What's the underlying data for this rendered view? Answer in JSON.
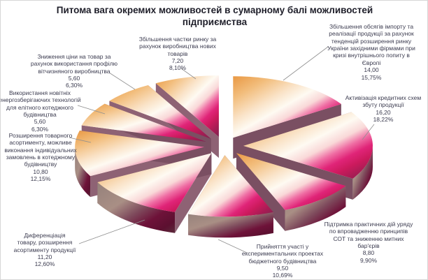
{
  "window": {
    "background": "#ffffff",
    "border_color": "#d6d6d6"
  },
  "title": {
    "text": "Питома вага окремих можливостей в сумарному балі можливостей\nпідприємства",
    "color": "#1e1e29"
  },
  "palette": {
    "slice_gradient": [
      "#E99843",
      "#F2BD7C",
      "#FAE3C8",
      "#FEFAF2",
      "#F9D8D8",
      "#EF6EA4",
      "#E02478",
      "#CC1A5D",
      "#A81C54",
      "#7E2450"
    ],
    "rim_gradient": [
      "#95817B",
      "#A98F85",
      "#7E4A5C",
      "#6E1239",
      "#5C1030",
      "#5C2B3C"
    ],
    "wall_start": "#8E6274",
    "wall_end": "#7A4F62",
    "leader_line": "#909090",
    "label_text": "#3c3c50"
  },
  "chart_data": {
    "type": "pie",
    "title": "Питома вага окремих можливостей в сумарному балі можливостей підприємства",
    "effect_3d": true,
    "exploded": true,
    "direction": "clockwise",
    "start_angle_deg": 0,
    "legend": "none",
    "data_label_format": "category, value, percent",
    "slices": [
      {
        "label": "Збільшення обсягів імпорту та\nреалізації продукції за рахунок\nтенденцій розширення ринку\nУкраїни західними фірмами при\nкризі внутрішнього попиту в\nЄвропі",
        "value": 14.0,
        "value_label": "14,00",
        "percent": 15.75,
        "percent_label": "15,75%"
      },
      {
        "label": "Активізація кредитних схем\nзбуту продукції",
        "value": 16.2,
        "value_label": "16,20",
        "percent": 18.22,
        "percent_label": "18,22%"
      },
      {
        "label": "Підтримка практичних дій уряду\nпо впровадженню принципів\nСОТ та зниженню митних\nбар'єрів",
        "value": 8.8,
        "value_label": "8,80",
        "percent": 9.9,
        "percent_label": "9,90%"
      },
      {
        "label": "Прийняття участі у\nекспериментальних проектах\nбюджетного будівництва",
        "value": 9.5,
        "value_label": "9,50",
        "percent": 10.69,
        "percent_label": "10,69%"
      },
      {
        "label": "Диференціація\nтовару, розширення\nасортименту продукції",
        "value": 11.2,
        "value_label": "11,20",
        "percent": 12.6,
        "percent_label": "12,60%"
      },
      {
        "label": "Розширення товарного\nасортименту, можливе\nвиконання індивідуальних\nзамовлень в котеджному\nбудівництву",
        "value": 10.8,
        "value_label": "10,80",
        "percent": 12.15,
        "percent_label": "12,15%"
      },
      {
        "label": "Використання новітніх\nенергозберігаючих технологій\nдля елітного котеджного\nбудівництва",
        "value": 5.6,
        "value_label": "5,60",
        "percent": 6.3,
        "percent_label": "6,30%"
      },
      {
        "label": "Зниження ціни на товар за\nрахунок використання профілю\nвітчизняного виробництва",
        "value": 5.6,
        "value_label": "5,60",
        "percent": 6.3,
        "percent_label": "6,30%"
      },
      {
        "label": "Збільшення частки ринку за\nрахунок виробництва нових\nтоварів",
        "value": 7.2,
        "value_label": "7,20",
        "percent": 8.1,
        "percent_label": "8,10%"
      }
    ]
  }
}
